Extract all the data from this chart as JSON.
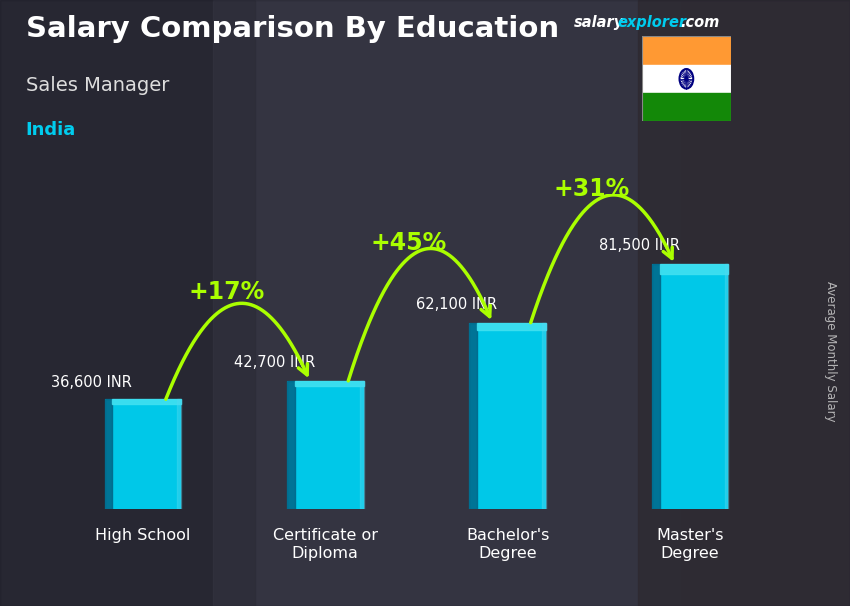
{
  "title": "Salary Comparison By Education",
  "subtitle": "Sales Manager",
  "country": "India",
  "categories": [
    "High School",
    "Certificate or\nDiploma",
    "Bachelor's\nDegree",
    "Master's\nDegree"
  ],
  "values": [
    36600,
    42700,
    62100,
    81500
  ],
  "labels": [
    "36,600 INR",
    "42,700 INR",
    "62,100 INR",
    "81,500 INR"
  ],
  "pct_changes": [
    "+17%",
    "+45%",
    "+31%"
  ],
  "bar_color_face": "#00c8e8",
  "bar_color_side": "#0088aa",
  "bar_color_dark": "#006688",
  "bar_color_top": "#40e0f0",
  "background_color": "#4a4a5a",
  "overlay_color": "#303040",
  "title_color": "#ffffff",
  "subtitle_color": "#dddddd",
  "country_color": "#00ccee",
  "label_color": "#ffffff",
  "pct_color": "#aaff00",
  "arrow_color": "#aaff00",
  "ylabel": "Average Monthly Salary",
  "ylim": [
    0,
    105000
  ],
  "bar_width": 0.42
}
